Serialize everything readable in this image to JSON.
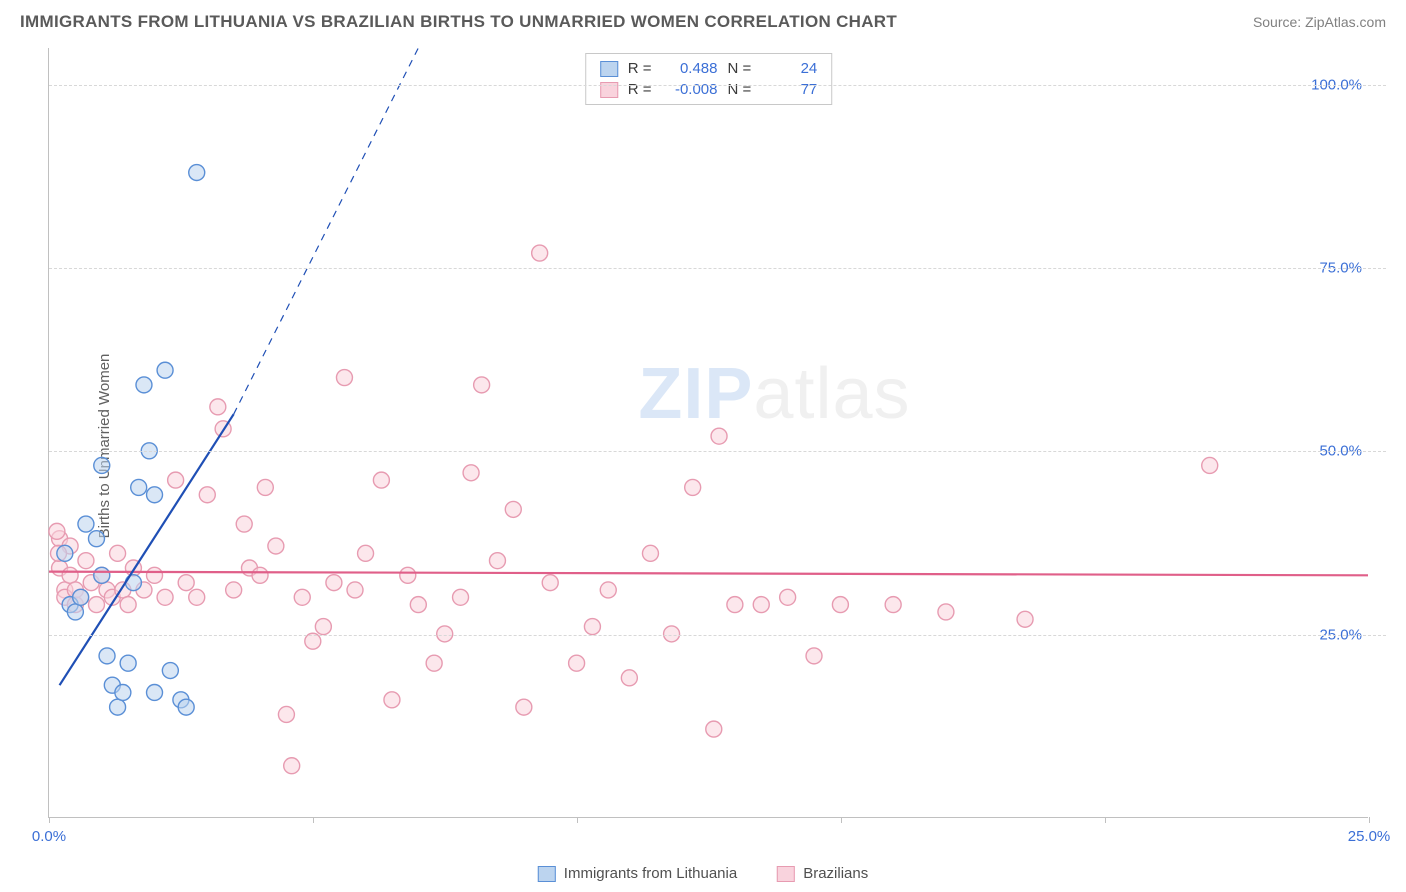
{
  "header": {
    "title": "IMMIGRANTS FROM LITHUANIA VS BRAZILIAN BIRTHS TO UNMARRIED WOMEN CORRELATION CHART",
    "source": "Source: ZipAtlas.com"
  },
  "axes": {
    "y_label": "Births to Unmarried Women",
    "xlim": [
      0,
      25
    ],
    "ylim": [
      0,
      105
    ],
    "y_ticks": [
      25,
      50,
      75,
      100
    ],
    "y_tick_labels": [
      "25.0%",
      "50.0%",
      "75.0%",
      "100.0%"
    ],
    "x_ticks": [
      0,
      5,
      10,
      15,
      20,
      25
    ],
    "x_tick_labels": [
      "0.0%",
      "",
      "",
      "",
      "",
      "25.0%"
    ],
    "grid_color": "#d8d8d8",
    "axis_color": "#c0c0c0"
  },
  "watermark": {
    "prefix": "ZIP",
    "suffix": "atlas"
  },
  "colors": {
    "series_blue_fill": "#bcd4ef",
    "series_blue_stroke": "#5a8fd6",
    "series_pink_fill": "#f9d3dd",
    "series_pink_stroke": "#e79bb1",
    "trend_blue": "#1f4fb5",
    "trend_pink": "#e05f89",
    "tick_text": "#3b6fd6"
  },
  "marker": {
    "radius": 8,
    "stroke_width": 1.4,
    "fill_opacity": 0.55
  },
  "series": [
    {
      "id": "lithuania",
      "label": "Immigrants from Lithuania",
      "color_fill": "#bcd4ef",
      "color_stroke": "#5a8fd6",
      "r_value": "0.488",
      "n_value": "24",
      "trend": {
        "x1": 0.2,
        "y1": 18,
        "x2": 3.5,
        "y2": 55,
        "dash_to_x": 7.0,
        "dash_to_y": 105,
        "width": 2.2
      },
      "points": [
        [
          0.3,
          36
        ],
        [
          0.4,
          29
        ],
        [
          0.5,
          28
        ],
        [
          0.6,
          30
        ],
        [
          0.7,
          40
        ],
        [
          0.9,
          38
        ],
        [
          1.0,
          48
        ],
        [
          1.1,
          22
        ],
        [
          1.2,
          18
        ],
        [
          1.3,
          15
        ],
        [
          1.4,
          17
        ],
        [
          1.5,
          21
        ],
        [
          1.6,
          32
        ],
        [
          1.7,
          45
        ],
        [
          1.8,
          59
        ],
        [
          1.9,
          50
        ],
        [
          2.0,
          44
        ],
        [
          2.2,
          61
        ],
        [
          2.3,
          20
        ],
        [
          2.5,
          16
        ],
        [
          2.6,
          15
        ],
        [
          2.8,
          88
        ],
        [
          2.0,
          17
        ],
        [
          1.0,
          33
        ]
      ]
    },
    {
      "id": "brazilians",
      "label": "Brazilians",
      "color_fill": "#f9d3dd",
      "color_stroke": "#e79bb1",
      "r_value": "-0.008",
      "n_value": "77",
      "trend": {
        "x1": 0,
        "y1": 33.5,
        "x2": 25,
        "y2": 33.0,
        "width": 2.2
      },
      "points": [
        [
          0.2,
          38
        ],
        [
          0.2,
          34
        ],
        [
          0.3,
          31
        ],
        [
          0.3,
          30
        ],
        [
          0.4,
          37
        ],
        [
          0.4,
          33
        ],
        [
          0.5,
          29
        ],
        [
          0.5,
          31
        ],
        [
          0.6,
          30
        ],
        [
          0.7,
          35
        ],
        [
          0.8,
          32
        ],
        [
          0.9,
          29
        ],
        [
          1.0,
          33
        ],
        [
          1.1,
          31
        ],
        [
          1.2,
          30
        ],
        [
          1.3,
          36
        ],
        [
          1.4,
          31
        ],
        [
          1.5,
          29
        ],
        [
          1.6,
          34
        ],
        [
          1.8,
          31
        ],
        [
          2.0,
          33
        ],
        [
          2.2,
          30
        ],
        [
          2.4,
          46
        ],
        [
          2.6,
          32
        ],
        [
          2.8,
          30
        ],
        [
          3.0,
          44
        ],
        [
          3.2,
          56
        ],
        [
          3.3,
          53
        ],
        [
          3.5,
          31
        ],
        [
          3.7,
          40
        ],
        [
          3.8,
          34
        ],
        [
          4.0,
          33
        ],
        [
          4.1,
          45
        ],
        [
          4.3,
          37
        ],
        [
          4.5,
          14
        ],
        [
          4.6,
          7
        ],
        [
          4.8,
          30
        ],
        [
          5.0,
          24
        ],
        [
          5.2,
          26
        ],
        [
          5.4,
          32
        ],
        [
          5.6,
          60
        ],
        [
          5.8,
          31
        ],
        [
          6.0,
          36
        ],
        [
          6.3,
          46
        ],
        [
          6.5,
          16
        ],
        [
          6.8,
          33
        ],
        [
          7.0,
          29
        ],
        [
          7.3,
          21
        ],
        [
          7.5,
          25
        ],
        [
          7.8,
          30
        ],
        [
          8.0,
          47
        ],
        [
          8.2,
          59
        ],
        [
          8.5,
          35
        ],
        [
          8.8,
          42
        ],
        [
          9.0,
          15
        ],
        [
          9.3,
          77
        ],
        [
          9.5,
          32
        ],
        [
          10.0,
          21
        ],
        [
          10.3,
          26
        ],
        [
          10.6,
          31
        ],
        [
          11.0,
          19
        ],
        [
          11.4,
          36
        ],
        [
          11.8,
          25
        ],
        [
          12.2,
          45
        ],
        [
          12.6,
          12
        ],
        [
          12.7,
          52
        ],
        [
          13.0,
          29
        ],
        [
          13.5,
          29
        ],
        [
          14.0,
          30
        ],
        [
          14.5,
          22
        ],
        [
          15.0,
          29
        ],
        [
          16.0,
          29
        ],
        [
          17.0,
          28
        ],
        [
          18.5,
          27
        ],
        [
          22.0,
          48
        ],
        [
          0.15,
          39
        ],
        [
          0.18,
          36
        ]
      ]
    }
  ],
  "legend_top": {
    "r_label": "R =",
    "n_label": "N ="
  }
}
